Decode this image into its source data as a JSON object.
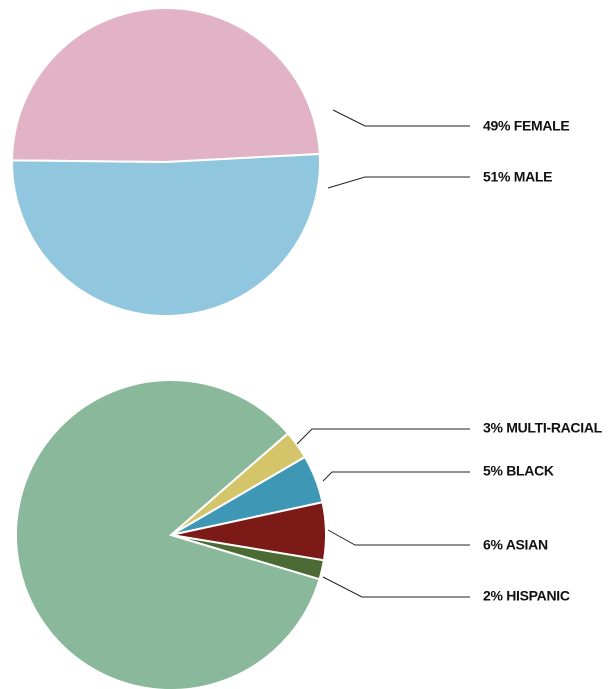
{
  "chart_data": [
    {
      "type": "pie",
      "values": [
        49,
        51
      ],
      "value_labels": [
        "49% FEMALE",
        "51% MALE"
      ],
      "colors": [
        "#e2b3c6",
        "#91c7de"
      ]
    },
    {
      "type": "pie",
      "values": [
        3,
        5,
        6,
        2,
        84
      ],
      "value_labels": [
        "3% MULTI-RACIAL",
        "5% BLACK",
        "6% ASIAN",
        "2% HISPANIC",
        null
      ],
      "colors": [
        "#d4c56a",
        "#3e98b5",
        "#7b1a17",
        "#4c6b34",
        "#8ab89b"
      ]
    }
  ]
}
